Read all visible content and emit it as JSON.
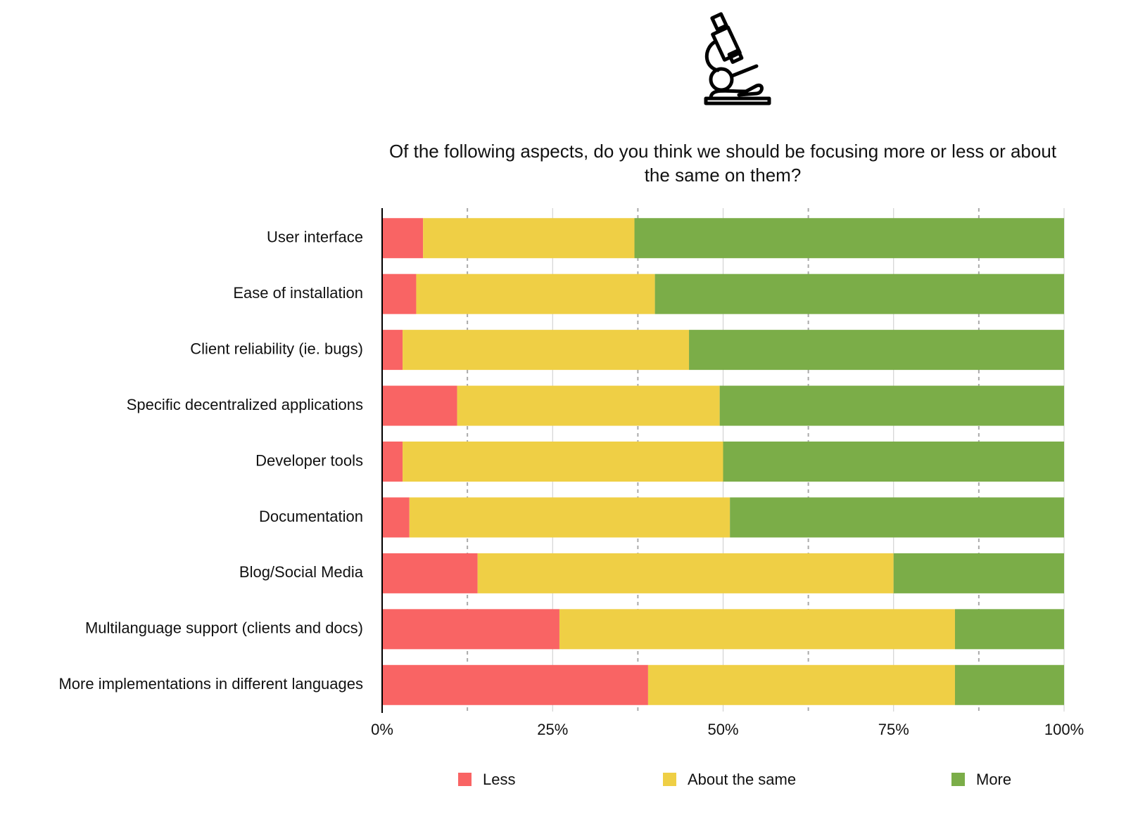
{
  "chart_data": {
    "type": "stacked_barh",
    "title": "Of the following aspects, do you think we should be focusing more or less or about the same on them?",
    "categories": [
      "User interface",
      "Ease of installation",
      "Client reliability (ie. bugs)",
      "Specific decentralized applications",
      "Developer tools",
      "Documentation",
      "Blog/Social Media",
      "Multilanguage support (clients and docs)",
      "More implementations in different languages"
    ],
    "series": [
      {
        "name": "Less",
        "color": "#f96464",
        "values": [
          6,
          5,
          3,
          11,
          3,
          4,
          14,
          26,
          39
        ]
      },
      {
        "name": "About the same",
        "color": "#efcf45",
        "values": [
          31,
          35,
          42,
          38.5,
          47,
          47,
          61,
          58,
          45
        ]
      },
      {
        "name": "More",
        "color": "#7bad48",
        "values": [
          63,
          60,
          55,
          50.5,
          50,
          49,
          25,
          16,
          16
        ]
      }
    ],
    "xlim": [
      0,
      100
    ],
    "xticks": [
      {
        "value": 0,
        "label": "0%"
      },
      {
        "value": 25,
        "label": "25%"
      },
      {
        "value": 50,
        "label": "50%"
      },
      {
        "value": 75,
        "label": "75%"
      },
      {
        "value": 100,
        "label": "100%"
      }
    ],
    "minor_xticks": [
      12.5,
      37.5,
      62.5,
      87.5
    ],
    "grid": true,
    "legend": "bottom"
  }
}
